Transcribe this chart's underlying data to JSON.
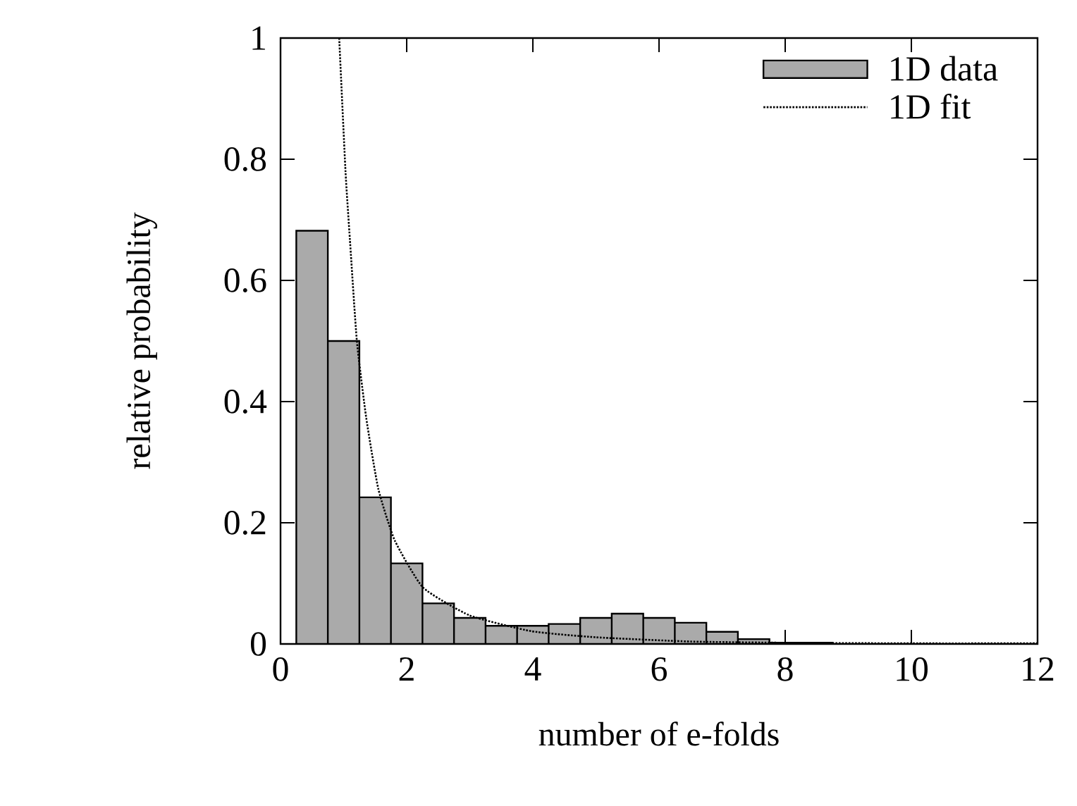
{
  "chart_data": {
    "type": "histogram",
    "xlabel": "number of e-folds",
    "ylabel": "relative probability",
    "xlim": [
      0,
      12
    ],
    "ylim": [
      0,
      1
    ],
    "xticks": [
      0,
      2,
      4,
      6,
      8,
      10,
      12
    ],
    "yticks": [
      0,
      0.2,
      0.4,
      0.6,
      0.8,
      1
    ],
    "legend": "top right",
    "grid": false,
    "series": [
      {
        "name": "1D data",
        "color": "#aaaaaa",
        "bins": [
          0.25,
          0.75,
          1.25,
          1.75,
          2.25,
          2.75,
          3.25,
          3.75,
          4.25,
          4.75,
          5.25,
          5.75,
          6.25,
          6.75,
          7.25,
          7.75,
          8.25,
          8.75
        ],
        "values": [
          0.682,
          0.5,
          0.242,
          0.133,
          0.067,
          0.043,
          0.03,
          0.03,
          0.033,
          0.043,
          0.05,
          0.043,
          0.035,
          0.02,
          0.008,
          0.002,
          0.002
        ]
      },
      {
        "name": "1D fit",
        "type": "line",
        "color": "#000000",
        "line_style": "dotted",
        "x": [
          0.93,
          1.03,
          1.1,
          1.21,
          1.36,
          1.55,
          1.81,
          2.26,
          3.0,
          3.98,
          5.0,
          6.5,
          8.0,
          10.0,
          12.0
        ],
        "values": [
          1.0,
          0.78,
          0.667,
          0.5,
          0.372,
          0.256,
          0.171,
          0.093,
          0.047,
          0.021,
          0.011,
          0.004,
          0.002,
          0.001,
          0.001
        ]
      }
    ]
  }
}
